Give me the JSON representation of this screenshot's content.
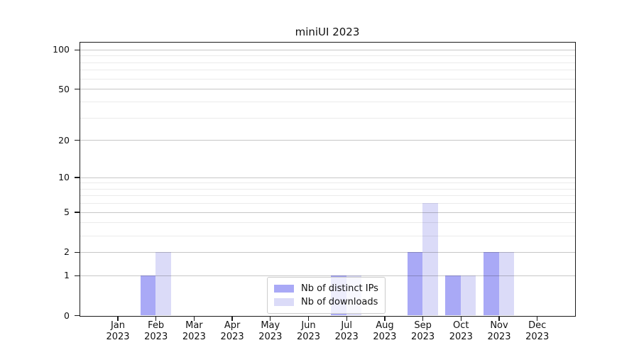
{
  "chart_data": {
    "type": "bar",
    "title": "miniUI 2023",
    "categories": [
      {
        "month": "Jan",
        "year": "2023"
      },
      {
        "month": "Feb",
        "year": "2023"
      },
      {
        "month": "Mar",
        "year": "2023"
      },
      {
        "month": "Apr",
        "year": "2023"
      },
      {
        "month": "May",
        "year": "2023"
      },
      {
        "month": "Jun",
        "year": "2023"
      },
      {
        "month": "Jul",
        "year": "2023"
      },
      {
        "month": "Aug",
        "year": "2023"
      },
      {
        "month": "Sep",
        "year": "2023"
      },
      {
        "month": "Oct",
        "year": "2023"
      },
      {
        "month": "Nov",
        "year": "2023"
      },
      {
        "month": "Dec",
        "year": "2023"
      }
    ],
    "series": [
      {
        "name": "Nb of distinct IPs",
        "color": "#a9a9f6",
        "values": [
          0,
          1,
          0,
          0,
          0,
          0,
          1,
          0,
          2,
          1,
          2,
          0
        ]
      },
      {
        "name": "Nb of downloads",
        "color": "#dbdbf8",
        "values": [
          0,
          2,
          0,
          0,
          0,
          0,
          1,
          0,
          6,
          1,
          2,
          0
        ]
      }
    ],
    "xlabel": "",
    "ylabel": "",
    "yscale": "log1p",
    "ylim": [
      0,
      113
    ],
    "y_ticks": [
      0,
      1,
      2,
      5,
      10,
      20,
      50,
      100
    ],
    "y_minor_ticks": [
      3,
      4,
      6,
      7,
      8,
      9,
      30,
      40,
      60,
      70,
      80,
      90
    ],
    "grid": true,
    "legend_position": "lower center"
  }
}
